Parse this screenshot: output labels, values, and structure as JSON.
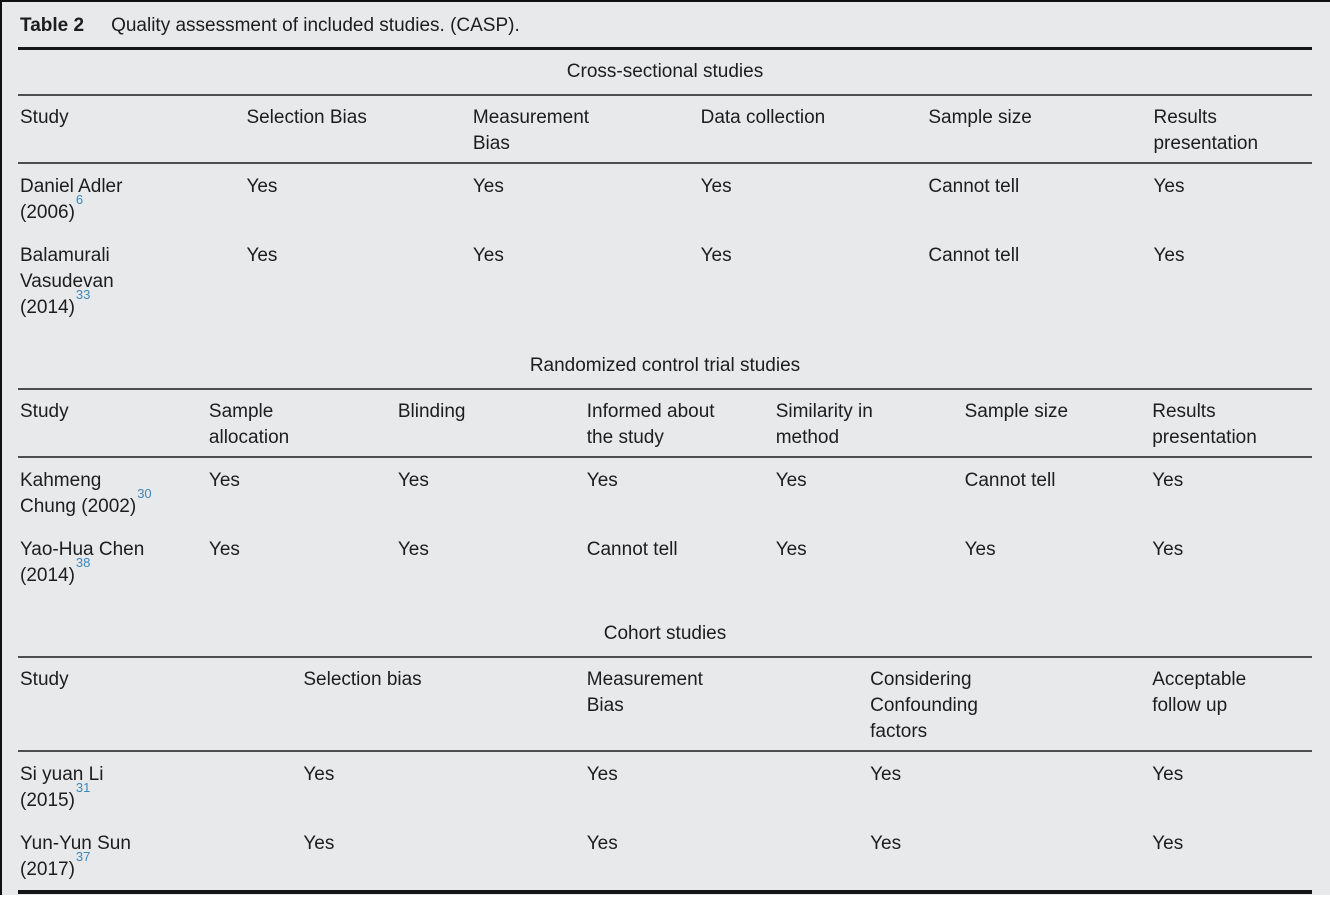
{
  "page": {
    "background_color": "#e8e9ea",
    "text_color": "#1d1d1f",
    "reference_link_color": "#3b87b8"
  },
  "caption": {
    "label": "Table 2",
    "text": "Quality assessment of included studies. (CASP)."
  },
  "sections": [
    {
      "id": "cross-sectional",
      "title": "Cross-sectional studies",
      "columns": [
        [
          "Study"
        ],
        [
          "Selection Bias"
        ],
        [
          "Measurement",
          "Bias"
        ],
        [
          "Data collection"
        ],
        [
          "Sample size"
        ],
        [
          "Results",
          "presentation"
        ]
      ],
      "rows": [
        {
          "study_lines": [
            "Daniel Adler",
            "(2006)"
          ],
          "reference": "6",
          "values": [
            "Yes",
            "Yes",
            "Yes",
            "Cannot tell",
            "Yes"
          ]
        },
        {
          "study_lines": [
            "Balamurali",
            "Vasudevan",
            "(2014)"
          ],
          "reference": "33",
          "values": [
            "Yes",
            "Yes",
            "Yes",
            "Cannot tell",
            "Yes"
          ]
        }
      ]
    },
    {
      "id": "randomized-control-trial",
      "title": "Randomized control trial studies",
      "columns": [
        [
          "Study"
        ],
        [
          "Sample",
          "allocation"
        ],
        [
          "Blinding"
        ],
        [
          "Informed about",
          "the study"
        ],
        [
          "Similarity in",
          "method"
        ],
        [
          "Sample size"
        ],
        [
          "Results",
          "presentation"
        ]
      ],
      "rows": [
        {
          "study_lines": [
            "Kahmeng",
            "Chung (2002)"
          ],
          "reference": "30",
          "values": [
            "Yes",
            "Yes",
            "Yes",
            "Yes",
            "Cannot tell",
            "Yes"
          ]
        },
        {
          "study_lines": [
            "Yao-Hua Chen",
            "(2014)"
          ],
          "reference": "38",
          "values": [
            "Yes",
            "Yes",
            "Cannot tell",
            "Yes",
            "Yes",
            "Yes"
          ]
        }
      ]
    },
    {
      "id": "cohort",
      "title": "Cohort studies",
      "columns": [
        [
          "Study"
        ],
        [
          "Selection bias"
        ],
        [
          "Measurement",
          "Bias"
        ],
        [
          "Considering",
          "Confounding",
          "factors"
        ],
        [
          "Acceptable",
          "follow up"
        ]
      ],
      "rows": [
        {
          "study_lines": [
            "Si yuan Li",
            "(2015)"
          ],
          "reference": "31",
          "values": [
            "Yes",
            "Yes",
            "Yes",
            "Yes"
          ]
        },
        {
          "study_lines": [
            "Yun-Yun Sun",
            "(2017)"
          ],
          "reference": "37",
          "values": [
            "Yes",
            "Yes",
            "Yes",
            "Yes"
          ]
        }
      ]
    }
  ]
}
